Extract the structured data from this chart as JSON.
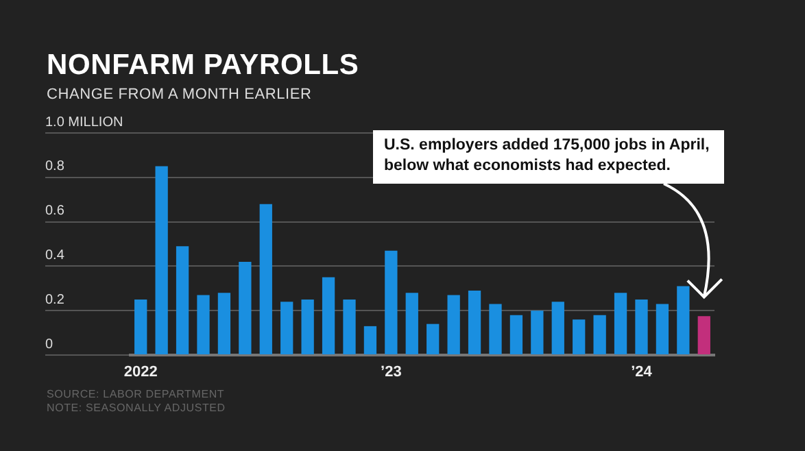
{
  "chart_data": {
    "type": "bar",
    "title": "NONFARM PAYROLLS",
    "subtitle": "CHANGE FROM A MONTH EARLIER",
    "categories": [
      "2022",
      null,
      null,
      null,
      null,
      null,
      null,
      null,
      null,
      null,
      null,
      null,
      "’23",
      null,
      null,
      null,
      null,
      null,
      null,
      null,
      null,
      null,
      null,
      null,
      "’24",
      null,
      null,
      null
    ],
    "values": [
      0.25,
      0.85,
      0.49,
      0.27,
      0.28,
      0.42,
      0.68,
      0.24,
      0.25,
      0.35,
      0.25,
      0.13,
      0.47,
      0.28,
      0.14,
      0.27,
      0.29,
      0.23,
      0.18,
      0.2,
      0.24,
      0.16,
      0.18,
      0.28,
      0.25,
      0.23,
      0.31,
      0.175
    ],
    "colors": [
      "#1a8fe0",
      "#1a8fe0",
      "#1a8fe0",
      "#1a8fe0",
      "#1a8fe0",
      "#1a8fe0",
      "#1a8fe0",
      "#1a8fe0",
      "#1a8fe0",
      "#1a8fe0",
      "#1a8fe0",
      "#1a8fe0",
      "#1a8fe0",
      "#1a8fe0",
      "#1a8fe0",
      "#1a8fe0",
      "#1a8fe0",
      "#1a8fe0",
      "#1a8fe0",
      "#1a8fe0",
      "#1a8fe0",
      "#1a8fe0",
      "#1a8fe0",
      "#1a8fe0",
      "#1a8fe0",
      "#1a8fe0",
      "#1a8fe0",
      "#c22f7c"
    ],
    "ylim": [
      0,
      1
    ],
    "yticks": [
      0,
      0.2,
      0.4,
      0.6,
      0.8,
      {
        "value": 1,
        "label": "1.0 MILLION"
      }
    ],
    "grid": "y",
    "legend": false,
    "annotations": [
      "U.S. employers added 175,000 jobs in April, below what economists had expected.",
      "SOURCE: LABOR DEPARTMENT",
      "NOTE: SEASONALLY ADJUSTED"
    ]
  }
}
